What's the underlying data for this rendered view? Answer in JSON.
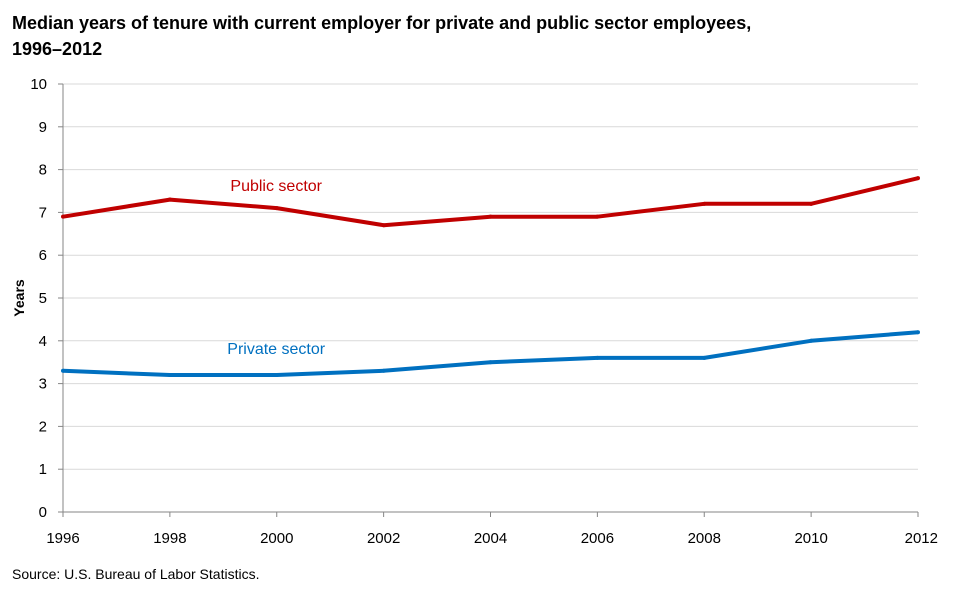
{
  "chart_data": {
    "type": "line",
    "title": "Median years of tenure with current employer for private and public sector employees,",
    "title_line2": "1996–2012",
    "xlabel": "",
    "ylabel": "Years",
    "x": [
      "1996",
      "1998",
      "2000",
      "2002",
      "2004",
      "2006",
      "2008",
      "2010",
      "2012"
    ],
    "ylim": [
      0,
      10
    ],
    "yticks": [
      "0",
      "1",
      "2",
      "3",
      "4",
      "5",
      "6",
      "7",
      "8",
      "9",
      "10"
    ],
    "grid": true,
    "series": [
      {
        "name": "Public sector",
        "color": "#c00000",
        "values": [
          6.9,
          7.3,
          7.1,
          6.7,
          6.9,
          6.9,
          7.2,
          7.2,
          7.8
        ]
      },
      {
        "name": "Private sector",
        "color": "#0070c0",
        "values": [
          3.3,
          3.2,
          3.2,
          3.3,
          3.5,
          3.6,
          3.6,
          4.0,
          4.2
        ]
      }
    ],
    "source": "Source: U.S. Bureau of Labor Statistics."
  }
}
